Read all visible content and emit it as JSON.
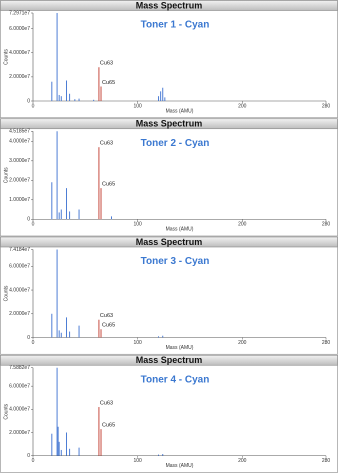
{
  "chart_data": [
    {
      "type": "stem",
      "header": "Mass Spectrum",
      "title": "Toner 1 - Cyan",
      "xlabel": "Mass (AMU)",
      "ylabel": "Counts",
      "xlim": [
        0,
        280
      ],
      "xticks": [
        0,
        100,
        200,
        280
      ],
      "ylim": [
        0,
        72971000
      ],
      "yticks": [
        0,
        {
          "value": 20000000,
          "label": "2.0000e7"
        },
        {
          "value": 40000000,
          "label": "4.0000e7"
        },
        {
          "value": 60000000,
          "label": "6.0000e7"
        },
        {
          "value": 72971000,
          "label": "7.2971e7"
        }
      ],
      "series": [
        {
          "color": "#3a6fd0",
          "x": [
            18,
            23,
            25,
            27,
            32,
            35,
            40,
            44,
            58,
            120,
            122,
            124,
            126
          ],
          "values": [
            16000000,
            72971000,
            5000000,
            4000000,
            17000000,
            6000000,
            1500000,
            2000000,
            1000000,
            4000000,
            8000000,
            11000000,
            3000000
          ]
        },
        {
          "color": "#c0392b",
          "x": [
            63,
            65
          ],
          "values": [
            28000000,
            12000000
          ]
        }
      ],
      "annotations": [
        {
          "text": "Cu63"
        },
        {
          "text": "Cu65"
        }
      ]
    },
    {
      "type": "stem",
      "header": "Mass Spectrum",
      "title": "Toner 2 - Cyan",
      "xlabel": "Mass (AMU)",
      "ylabel": "Counts",
      "xlim": [
        0,
        280
      ],
      "xticks": [
        0,
        100,
        200,
        280
      ],
      "ylim": [
        0,
        45185000
      ],
      "yticks": [
        0,
        {
          "value": 10000000,
          "label": "1.0000e7"
        },
        {
          "value": 20000000,
          "label": "2.0000e7"
        },
        {
          "value": 30000000,
          "label": "3.0000e7"
        },
        {
          "value": 40000000,
          "label": "4.0000e7"
        },
        {
          "value": 45185000,
          "label": "4.5185e7"
        }
      ],
      "series": [
        {
          "color": "#3a6fd0",
          "x": [
            18,
            23,
            25,
            27,
            32,
            35,
            44,
            75
          ],
          "values": [
            19000000,
            45185000,
            3500000,
            5000000,
            16000000,
            4000000,
            5000000,
            1500000
          ]
        },
        {
          "color": "#c0392b",
          "x": [
            63,
            65
          ],
          "values": [
            37000000,
            16000000
          ]
        }
      ],
      "annotations": [
        {
          "text": "Cu63"
        },
        {
          "text": "Cu65"
        }
      ]
    },
    {
      "type": "stem",
      "header": "Mass Spectrum",
      "title": "Toner 3 - Cyan",
      "xlabel": "Mass (AMU)",
      "ylabel": "Counts",
      "xlim": [
        0,
        280
      ],
      "xticks": [
        0,
        100,
        200,
        280
      ],
      "ylim": [
        0,
        74184000
      ],
      "yticks": [
        0,
        {
          "value": 20000000,
          "label": "2.0000e7"
        },
        {
          "value": 40000000,
          "label": "4.0000e7"
        },
        {
          "value": 60000000,
          "label": "6.0000e7"
        },
        {
          "value": 74184000,
          "label": "7.4184e7"
        }
      ],
      "series": [
        {
          "color": "#3a6fd0",
          "x": [
            18,
            23,
            25,
            27,
            32,
            35,
            44,
            120,
            124
          ],
          "values": [
            20000000,
            74184000,
            6000000,
            4000000,
            17000000,
            5000000,
            10000000,
            1000000,
            1500000
          ]
        },
        {
          "color": "#c0392b",
          "x": [
            63,
            65
          ],
          "values": [
            15000000,
            7000000
          ]
        }
      ],
      "annotations": [
        {
          "text": "Cu63"
        },
        {
          "text": "Cu65"
        }
      ]
    },
    {
      "type": "stem",
      "header": "Mass Spectrum",
      "title": "Toner 4 - Cyan",
      "xlabel": "Mass (AMU)",
      "ylabel": "Counts",
      "xlim": [
        0,
        280
      ],
      "xticks": [
        0,
        100,
        200,
        280
      ],
      "ylim": [
        0,
        75882000
      ],
      "yticks": [
        0,
        {
          "value": 20000000,
          "label": "2.0000e7"
        },
        {
          "value": 40000000,
          "label": "4.0000e7"
        },
        {
          "value": 60000000,
          "label": "6.0000e7"
        },
        {
          "value": 75882000,
          "label": "7.5882e7"
        }
      ],
      "series": [
        {
          "color": "#3a6fd0",
          "x": [
            18,
            23,
            24,
            25,
            27,
            32,
            35,
            44,
            120,
            124
          ],
          "values": [
            19000000,
            75882000,
            25000000,
            12000000,
            5000000,
            20000000,
            6000000,
            7000000,
            1000000,
            1500000
          ]
        },
        {
          "color": "#c0392b",
          "x": [
            63,
            65
          ],
          "values": [
            42000000,
            23000000
          ]
        }
      ],
      "annotations": [
        {
          "text": "Cu63"
        },
        {
          "text": "Cu65"
        }
      ]
    }
  ]
}
